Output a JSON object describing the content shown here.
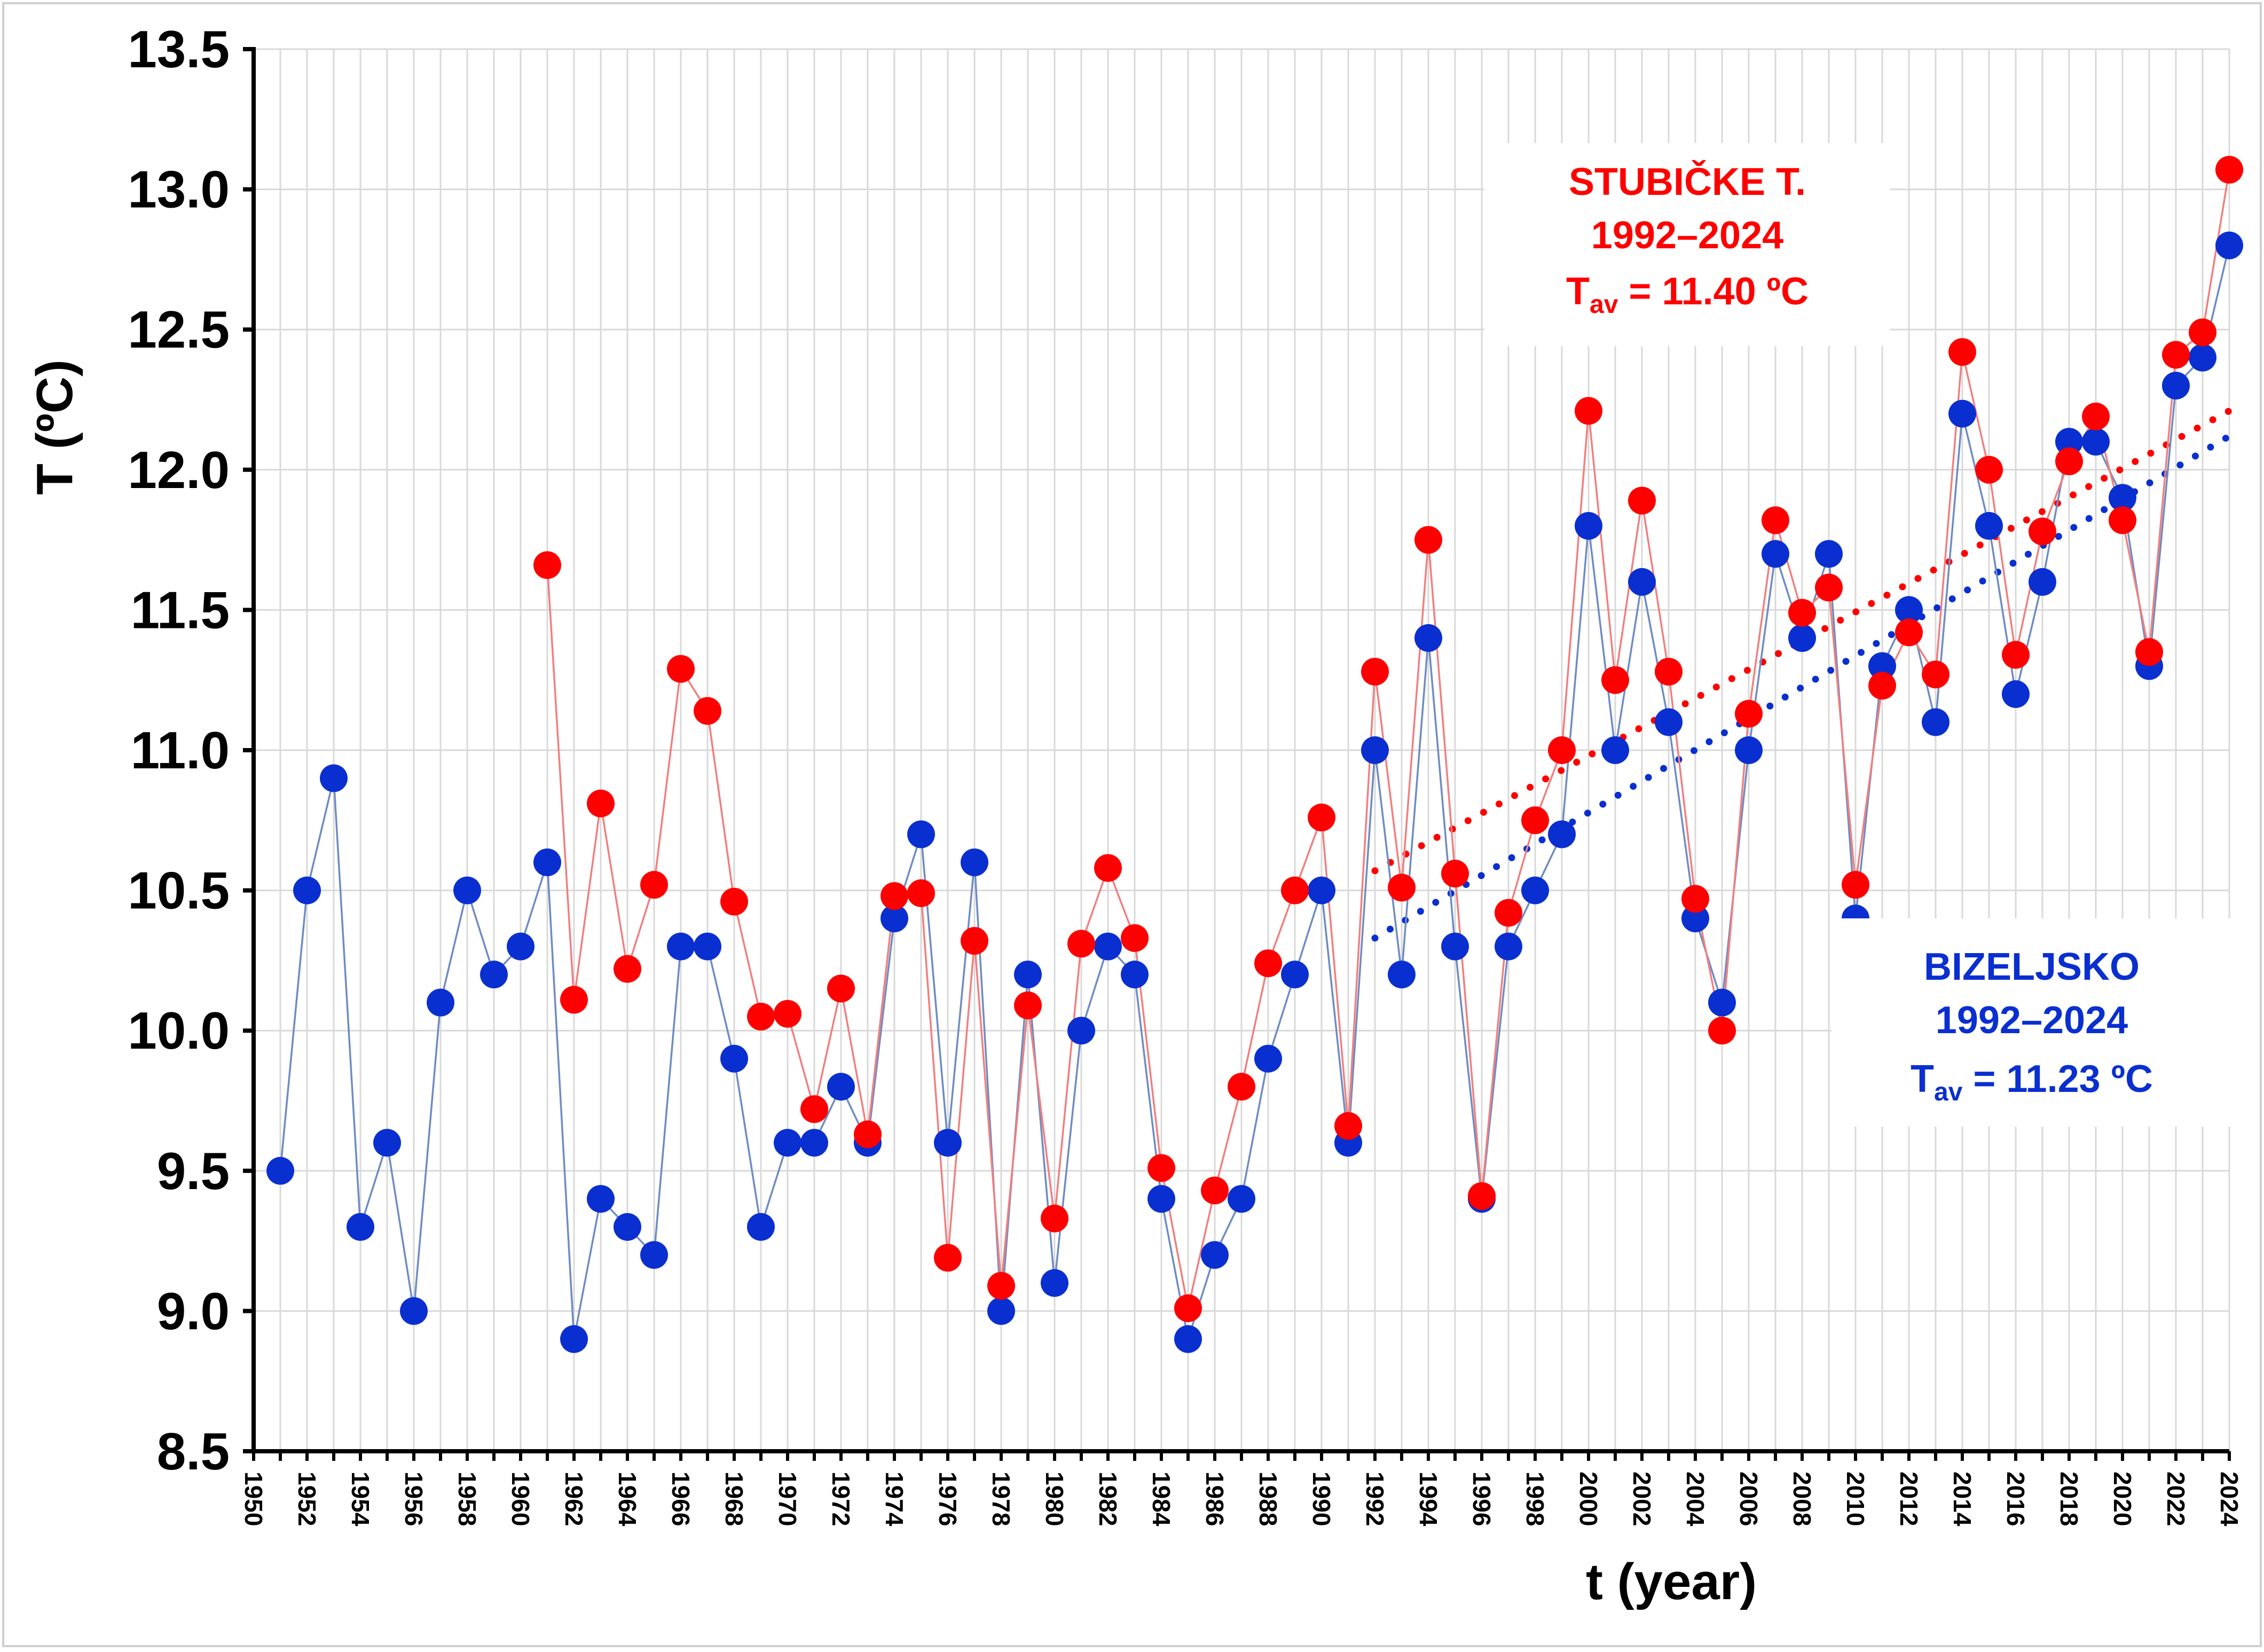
{
  "chart_data": {
    "type": "line",
    "title": "",
    "xlabel": "t (year)",
    "ylabel": "T (ºC)",
    "ylim": [
      8.5,
      13.5
    ],
    "xlim": [
      1950,
      2024
    ],
    "y_ticks": [
      "8.5",
      "9.0",
      "9.5",
      "10.0",
      "10.5",
      "11.0",
      "11.5",
      "12.0",
      "12.5",
      "13.0",
      "13.5"
    ],
    "x_ticks": [
      "1950",
      "1952",
      "1954",
      "1956",
      "1958",
      "1960",
      "1962",
      "1964",
      "1966",
      "1968",
      "1970",
      "1972",
      "1974",
      "1976",
      "1978",
      "1980",
      "1982",
      "1984",
      "1986",
      "1988",
      "1990",
      "1992",
      "1994",
      "1996",
      "1998",
      "2000",
      "2002",
      "2004",
      "2006",
      "2008",
      "2010",
      "2012",
      "2014",
      "2016",
      "2018",
      "2020",
      "2022",
      "2024"
    ],
    "grid": true,
    "series": [
      {
        "name": "Bizeljsko",
        "color": "#0a2fd0",
        "line_color": "#6f8cc2",
        "x": [
          1951,
          1952,
          1953,
          1954,
          1955,
          1956,
          1957,
          1958,
          1959,
          1960,
          1961,
          1962,
          1963,
          1964,
          1965,
          1966,
          1967,
          1968,
          1969,
          1970,
          1971,
          1972,
          1973,
          1974,
          1975,
          1976,
          1977,
          1978,
          1979,
          1980,
          1981,
          1982,
          1983,
          1984,
          1985,
          1986,
          1987,
          1988,
          1989,
          1990,
          1991,
          1992,
          1993,
          1994,
          1995,
          1996,
          1997,
          1998,
          1999,
          2000,
          2001,
          2002,
          2003,
          2004,
          2005,
          2006,
          2007,
          2008,
          2009,
          2010,
          2011,
          2012,
          2013,
          2014,
          2015,
          2016,
          2017,
          2018,
          2019,
          2020,
          2021,
          2022,
          2023,
          2024
        ],
        "values": [
          9.5,
          10.5,
          10.9,
          9.3,
          9.6,
          9.0,
          10.1,
          10.5,
          10.2,
          10.3,
          10.6,
          8.9,
          9.4,
          9.3,
          9.2,
          10.3,
          10.3,
          9.9,
          9.3,
          9.6,
          9.6,
          9.8,
          9.6,
          10.4,
          10.7,
          9.6,
          10.6,
          9.0,
          10.2,
          9.1,
          10.0,
          10.3,
          10.2,
          9.4,
          8.9,
          9.2,
          9.4,
          9.9,
          10.2,
          10.5,
          9.6,
          11.0,
          10.2,
          11.4,
          10.3,
          9.4,
          10.3,
          10.5,
          10.7,
          11.8,
          11.0,
          11.6,
          11.1,
          10.4,
          10.1,
          11.0,
          11.7,
          11.4,
          11.7,
          10.4,
          11.3,
          11.5,
          11.1,
          12.2,
          11.8,
          11.2,
          11.6,
          12.1,
          12.1,
          11.9,
          11.3,
          12.3,
          12.4,
          12.8
        ]
      },
      {
        "name": "Stubičke T.",
        "color": "#ff0000",
        "line_color": "#f08080",
        "x": [
          1961,
          1962,
          1963,
          1964,
          1965,
          1966,
          1967,
          1968,
          1969,
          1970,
          1971,
          1972,
          1973,
          1974,
          1975,
          1976,
          1977,
          1978,
          1979,
          1980,
          1981,
          1982,
          1983,
          1984,
          1985,
          1986,
          1987,
          1988,
          1989,
          1990,
          1991,
          1992,
          1993,
          1994,
          1995,
          1996,
          1997,
          1998,
          1999,
          2000,
          2001,
          2002,
          2003,
          2004,
          2005,
          2006,
          2007,
          2008,
          2009,
          2010,
          2011,
          2012,
          2013,
          2014,
          2015,
          2016,
          2017,
          2018,
          2019,
          2020,
          2021,
          2022,
          2023,
          2024
        ],
        "values": [
          11.66,
          10.11,
          10.81,
          10.22,
          10.52,
          11.29,
          11.14,
          10.46,
          10.05,
          10.06,
          9.72,
          10.15,
          9.63,
          10.48,
          10.49,
          9.19,
          10.32,
          9.09,
          10.09,
          9.33,
          10.31,
          10.58,
          10.33,
          9.51,
          9.01,
          9.43,
          9.8,
          10.24,
          10.5,
          10.76,
          9.66,
          11.28,
          10.51,
          11.75,
          10.56,
          9.41,
          10.42,
          10.75,
          11.0,
          12.21,
          11.25,
          11.89,
          11.28,
          10.47,
          10.0,
          11.13,
          11.82,
          11.49,
          11.58,
          10.52,
          11.23,
          11.42,
          11.27,
          12.42,
          12.0,
          11.34,
          11.78,
          12.03,
          12.19,
          11.82,
          11.35,
          12.41,
          12.49,
          13.07
        ]
      }
    ],
    "trends": [
      {
        "name": "Stubičke T. trend 1992–2024",
        "color": "#ff0000",
        "x": [
          1992,
          2024
        ],
        "values": [
          10.57,
          12.21
        ]
      },
      {
        "name": "Bizeljsko trend 1992–2024",
        "color": "#0a2fd0",
        "x": [
          1992,
          2024
        ],
        "values": [
          10.33,
          12.12
        ]
      }
    ],
    "annotations": {
      "stubicke": {
        "name": "STUBIČKE T.",
        "period": "1992–2024",
        "tav_label": "T",
        "tav_sub": "av",
        "tav_value": " = 11.40 ºC"
      },
      "bizeljsko": {
        "name": "BIZELJSKO",
        "period": "1992–2024",
        "tav_label": "T",
        "tav_sub": "av",
        "tav_value": " = 11.23 ºC"
      }
    }
  }
}
